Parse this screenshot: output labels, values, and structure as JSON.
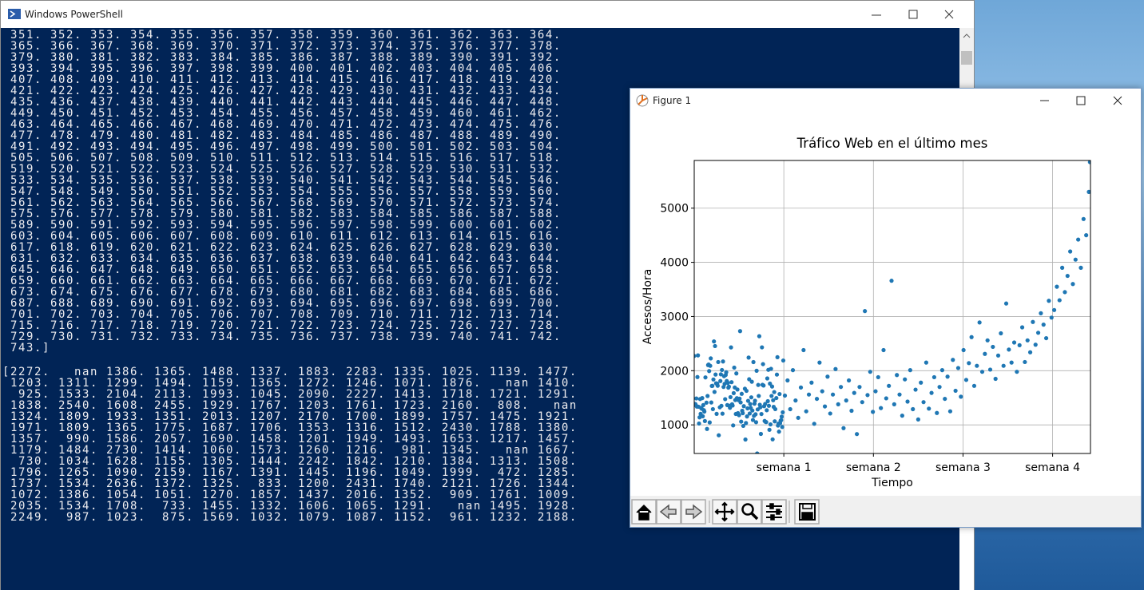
{
  "powershell": {
    "title": "Windows PowerShell",
    "range_output": [
      " 351. 352. 353. 354. 355. 356. 357. 358. 359. 360. 361. 362. 363. 364.",
      " 365. 366. 367. 368. 369. 370. 371. 372. 373. 374. 375. 376. 377. 378.",
      " 379. 380. 381. 382. 383. 384. 385. 386. 387. 388. 389. 390. 391. 392.",
      " 393. 394. 395. 396. 397. 398. 399. 400. 401. 402. 403. 404. 405. 406.",
      " 407. 408. 409. 410. 411. 412. 413. 414. 415. 416. 417. 418. 419. 420.",
      " 421. 422. 423. 424. 425. 426. 427. 428. 429. 430. 431. 432. 433. 434.",
      " 435. 436. 437. 438. 439. 440. 441. 442. 443. 444. 445. 446. 447. 448.",
      " 449. 450. 451. 452. 453. 454. 455. 456. 457. 458. 459. 460. 461. 462.",
      " 463. 464. 465. 466. 467. 468. 469. 470. 471. 472. 473. 474. 475. 476.",
      " 477. 478. 479. 480. 481. 482. 483. 484. 485. 486. 487. 488. 489. 490.",
      " 491. 492. 493. 494. 495. 496. 497. 498. 499. 500. 501. 502. 503. 504.",
      " 505. 506. 507. 508. 509. 510. 511. 512. 513. 514. 515. 516. 517. 518.",
      " 519. 520. 521. 522. 523. 524. 525. 526. 527. 528. 529. 530. 531. 532.",
      " 533. 534. 535. 536. 537. 538. 539. 540. 541. 542. 543. 544. 545. 546.",
      " 547. 548. 549. 550. 551. 552. 553. 554. 555. 556. 557. 558. 559. 560.",
      " 561. 562. 563. 564. 565. 566. 567. 568. 569. 570. 571. 572. 573. 574.",
      " 575. 576. 577. 578. 579. 580. 581. 582. 583. 584. 585. 586. 587. 588.",
      " 589. 590. 591. 592. 593. 594. 595. 596. 597. 598. 599. 600. 601. 602.",
      " 603. 604. 605. 606. 607. 608. 609. 610. 611. 612. 613. 614. 615. 616.",
      " 617. 618. 619. 620. 621. 622. 623. 624. 625. 626. 627. 628. 629. 630.",
      " 631. 632. 633. 634. 635. 636. 637. 638. 639. 640. 641. 642. 643. 644.",
      " 645. 646. 647. 648. 649. 650. 651. 652. 653. 654. 655. 656. 657. 658.",
      " 659. 660. 661. 662. 663. 664. 665. 666. 667. 668. 669. 670. 671. 672.",
      " 673. 674. 675. 676. 677. 678. 679. 680. 681. 682. 683. 684. 685. 686.",
      " 687. 688. 689. 690. 691. 692. 693. 694. 695. 696. 697. 698. 699. 700.",
      " 701. 702. 703. 704. 705. 706. 707. 708. 709. 710. 711. 712. 713. 714.",
      " 715. 716. 717. 718. 719. 720. 721. 722. 723. 724. 725. 726. 727. 728.",
      " 729. 730. 731. 732. 733. 734. 735. 736. 737. 738. 739. 740. 741. 742.",
      " 743.]"
    ],
    "array_output": [
      "[2272.   nan 1386. 1365. 1488. 1337. 1883. 2283. 1335. 1025. 1139. 1477.",
      " 1203. 1311. 1299. 1494. 1159. 1365. 1272. 1246. 1071. 1876.   nan 1410.",
      "  925. 1533. 2104. 2113. 1993. 1045. 2090. 2227. 1413. 1718. 1721. 1291.",
      " 1838. 2540. 1608. 2455. 1929. 1767. 1203. 1761. 1723. 2160.  808.   nan",
      " 1324. 1809. 1933. 1351. 2013. 1207. 2170. 1700. 1899. 1757. 1475. 1921.",
      " 1971. 1809. 1365. 1775. 1687. 1706. 1353. 1316. 1512. 2430. 1788. 1380.",
      " 1357.  990. 1586. 2057. 1690. 1458. 1201. 1949. 1493. 1653. 1217. 1457.",
      " 1179. 1484. 2730. 1414. 1060. 1573. 1260. 1216.  981. 1345.   nan 1667.",
      "  730. 1034. 1628. 1155. 1305. 1444. 2242. 1842. 1210. 1384. 1313. 1508.",
      " 1796. 1265. 1090. 2159. 1167. 1391. 1445. 1196. 1049. 1999.  472. 1285.",
      " 1737. 1534. 2636. 1372. 1325.  833. 1200. 2431. 1740. 2121. 1726. 1344.",
      " 1072. 1386. 1054. 1051. 1270. 1857. 1437. 2016. 1352.  909. 1761. 1009.",
      " 2035. 1534. 1708.  733. 1455. 1332. 1606. 1065. 1291.   nan 1495. 1928.",
      " 2249.  987. 1023.  875. 1569. 1032. 1079. 1087. 1152.  961. 1232. 2188."
    ]
  },
  "figure_window": {
    "title": "Figure 1"
  },
  "chart_data": {
    "type": "scatter",
    "title": "Tráfico Web en el último mes",
    "x_label": "Tiempo",
    "y_label": "Accesos/Hora",
    "color": "#1f77b4",
    "grid": true,
    "xlim": [
      0,
      743
    ],
    "ylim": [
      472,
      5880
    ],
    "xticks": [
      {
        "value": 168,
        "label": "semana 1"
      },
      {
        "value": 336,
        "label": "semana 2"
      },
      {
        "value": 504,
        "label": "semana 3"
      },
      {
        "value": 672,
        "label": "semana 4"
      }
    ],
    "yticks": [
      1000,
      2000,
      3000,
      4000,
      5000
    ],
    "x": [
      0,
      1,
      2,
      3,
      4,
      5,
      6,
      7,
      8,
      9,
      10,
      11,
      12,
      13,
      14,
      15,
      16,
      17,
      18,
      19,
      20,
      21,
      22,
      23,
      24,
      25,
      26,
      27,
      28,
      29,
      30,
      31,
      32,
      33,
      34,
      35,
      36,
      37,
      38,
      39,
      40,
      41,
      42,
      43,
      44,
      45,
      46,
      47,
      48,
      49,
      50,
      51,
      52,
      53,
      54,
      55,
      56,
      57,
      58,
      59,
      60,
      61,
      62,
      63,
      64,
      65,
      66,
      67,
      68,
      69,
      70,
      71,
      72,
      73,
      74,
      75,
      76,
      77,
      78,
      79,
      80,
      81,
      82,
      83,
      84,
      85,
      86,
      87,
      88,
      89,
      90,
      91,
      92,
      93,
      94,
      95,
      96,
      97,
      98,
      99,
      100,
      101,
      102,
      103,
      104,
      105,
      106,
      107,
      108,
      109,
      110,
      111,
      112,
      113,
      114,
      115,
      116,
      117,
      118,
      119,
      120,
      121,
      122,
      123,
      124,
      125,
      126,
      127,
      128,
      129,
      130,
      131,
      132,
      133,
      134,
      135,
      136,
      137,
      138,
      139,
      140,
      141,
      142,
      143,
      144,
      145,
      146,
      147,
      148,
      149,
      150,
      151,
      152,
      153,
      154,
      155,
      156,
      157,
      158,
      159,
      160,
      161,
      162,
      163,
      164,
      165,
      166,
      167,
      170,
      175,
      180,
      185,
      190,
      195,
      200,
      205,
      210,
      215,
      220,
      225,
      230,
      235,
      240,
      245,
      250,
      255,
      260,
      265,
      270,
      275,
      280,
      285,
      290,
      295,
      300,
      305,
      310,
      315,
      320,
      325,
      330,
      335,
      340,
      345,
      350,
      355,
      360,
      365,
      370,
      375,
      380,
      385,
      390,
      395,
      400,
      405,
      410,
      415,
      420,
      425,
      430,
      435,
      440,
      445,
      450,
      455,
      460,
      465,
      470,
      475,
      480,
      485,
      490,
      495,
      500,
      505,
      510,
      515,
      520,
      525,
      530,
      535,
      540,
      545,
      550,
      555,
      560,
      565,
      570,
      575,
      580,
      585,
      590,
      595,
      600,
      605,
      610,
      615,
      620,
      625,
      630,
      635,
      640,
      645,
      650,
      655,
      660,
      665,
      670,
      675,
      680,
      685,
      690,
      695,
      700,
      705,
      710,
      715,
      720,
      725,
      730,
      735,
      740,
      742
    ],
    "values": [
      2272,
      null,
      1386,
      1365,
      1488,
      1337,
      1883,
      2283,
      1335,
      1025,
      1139,
      1477,
      1203,
      1311,
      1299,
      1494,
      1159,
      1365,
      1272,
      1246,
      1071,
      1876,
      null,
      1410,
      925,
      1533,
      2104,
      2113,
      1993,
      1045,
      2090,
      2227,
      1413,
      1718,
      1721,
      1291,
      1838,
      2540,
      1608,
      2455,
      1929,
      1767,
      1203,
      1761,
      1723,
      2160,
      808,
      null,
      1324,
      1809,
      1933,
      1351,
      2013,
      1207,
      2170,
      1700,
      1899,
      1757,
      1475,
      1921,
      1971,
      1809,
      1365,
      1775,
      1687,
      1706,
      1353,
      1316,
      1512,
      2430,
      1788,
      1380,
      1357,
      990,
      1586,
      2057,
      1690,
      1458,
      1201,
      1949,
      1493,
      1653,
      1217,
      1457,
      1179,
      1484,
      2730,
      1414,
      1060,
      1573,
      1260,
      1216,
      981,
      1345,
      null,
      1667,
      730,
      1034,
      1628,
      1155,
      1305,
      1444,
      2242,
      1842,
      1210,
      1384,
      1313,
      1508,
      1796,
      1265,
      1090,
      2159,
      1167,
      1391,
      1445,
      1196,
      1049,
      1999,
      472,
      1285,
      1737,
      1534,
      2636,
      1372,
      1325,
      833,
      1200,
      2431,
      1740,
      2121,
      1726,
      1344,
      1072,
      1386,
      1054,
      1051,
      1270,
      1857,
      1437,
      2016,
      1352,
      909,
      1761,
      1009,
      2035,
      1534,
      1708,
      733,
      1455,
      1332,
      1606,
      1065,
      1291,
      null,
      1495,
      1928,
      2249,
      987,
      1023,
      875,
      1569,
      1032,
      1079,
      1087,
      1152,
      961,
      1232,
      2188,
      1540,
      1820,
      1290,
      2010,
      1450,
      1130,
      1690,
      2380,
      1250,
      1560,
      1780,
      1020,
      1480,
      2150,
      1620,
      1340,
      1890,
      1210,
      1560,
      2030,
      1380,
      1700,
      940,
      1450,
      1820,
      1260,
      1590,
      830,
      1700,
      1420,
      3100,
      1550,
      1980,
      1240,
      1620,
      1880,
      1310,
      2380,
      1490,
      1720,
      3660,
      1380,
      1920,
      1560,
      1170,
      1840,
      1430,
      2010,
      1290,
      1650,
      1100,
      1780,
      1420,
      2150,
      1300,
      1590,
      1880,
      1220,
      1700,
      2010,
      1480,
      1890,
      1250,
      2200,
      1630,
      2050,
      1520,
      2380,
      1830,
      2140,
      2620,
      1720,
      2090,
      2890,
      1980,
      2310,
      2560,
      2020,
      2440,
      1850,
      2280,
      2690,
      2090,
      3240,
      2390,
      2150,
      2520,
      1980,
      2470,
      2800,
      2160,
      2560,
      2340,
      2900,
      2480,
      2700,
      3060,
      2850,
      2600,
      3290,
      2980,
      3120,
      3550,
      3300,
      3900,
      3450,
      3750,
      4200,
      3600,
      4050,
      4420,
      3900,
      4800,
      4500,
      5300,
      5850
    ]
  }
}
